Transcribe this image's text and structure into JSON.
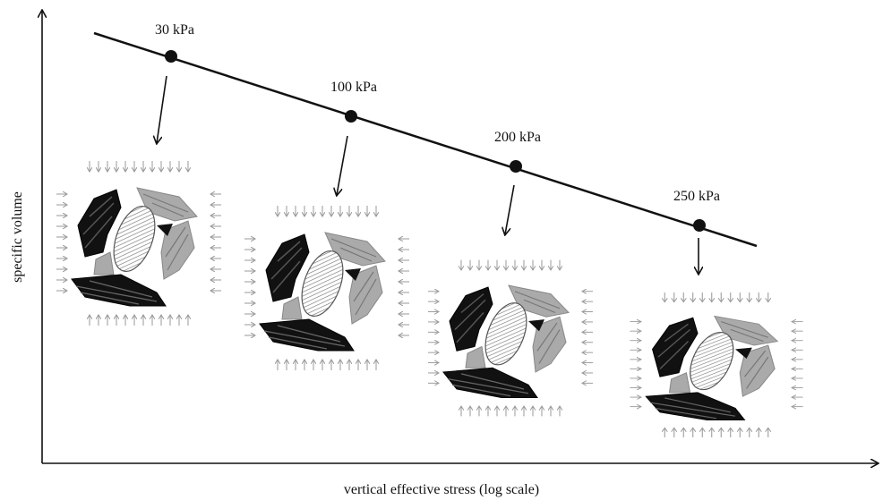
{
  "axes": {
    "x_label": "vertical effective stress (log scale)",
    "y_label": "specific volume"
  },
  "points": [
    {
      "label": "30 kPa"
    },
    {
      "label": "100 kPa"
    },
    {
      "label": "200 kPa"
    },
    {
      "label": "250 kPa"
    }
  ]
}
